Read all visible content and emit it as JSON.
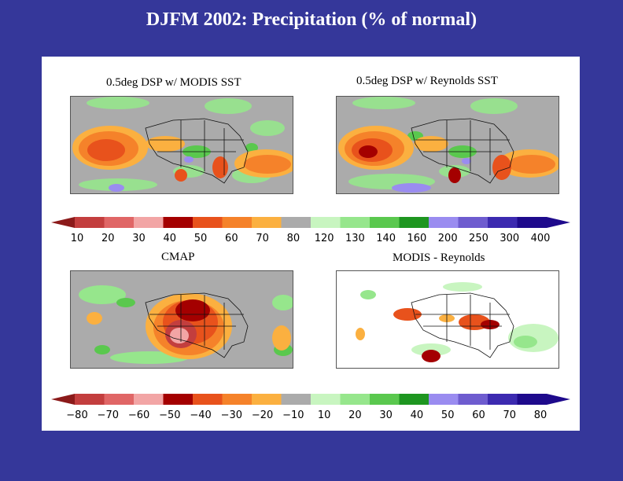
{
  "title": "DJFM 2002: Precipitation (% of normal)",
  "panels": [
    {
      "id": "modis",
      "title": "0.5deg DSP w/ MODIS SST"
    },
    {
      "id": "reynolds",
      "title": "0.5deg DSP w/ Reynolds SST"
    },
    {
      "id": "cmap",
      "title": "CMAP"
    },
    {
      "id": "diff",
      "title": "MODIS - Reynolds"
    }
  ],
  "colorbar_top": {
    "labels": [
      "10",
      "20",
      "30",
      "40",
      "50",
      "60",
      "70",
      "80",
      "120",
      "130",
      "140",
      "160",
      "200",
      "250",
      "300",
      "400"
    ],
    "colors": [
      "#c33e3e",
      "#e06666",
      "#f2a5a5",
      "#a40000",
      "#e8521c",
      "#f5822a",
      "#fbb040",
      "#ababab",
      "#c8f5c0",
      "#96e68c",
      "#5ac84e",
      "#1e9620",
      "#9a8cf0",
      "#6e5ccf",
      "#3c2ab0",
      "#1e0a8c"
    ],
    "end_left": "#8b1a1a",
    "end_right": "#1e0a8c"
  },
  "colorbar_bottom": {
    "labels": [
      "−80",
      "−70",
      "−60",
      "−50",
      "−40",
      "−30",
      "−20",
      "−10",
      "10",
      "20",
      "30",
      "40",
      "50",
      "60",
      "70",
      "80"
    ],
    "colors": [
      "#c33e3e",
      "#e06666",
      "#f2a5a5",
      "#a40000",
      "#e8521c",
      "#f5822a",
      "#fbb040",
      "#ababab",
      "#c8f5c0",
      "#96e68c",
      "#5ac84e",
      "#1e9620",
      "#9a8cf0",
      "#6e5ccf",
      "#3c2ab0",
      "#1e0a8c"
    ],
    "end_left": "#8b1a1a",
    "end_right": "#1e0a8c"
  }
}
